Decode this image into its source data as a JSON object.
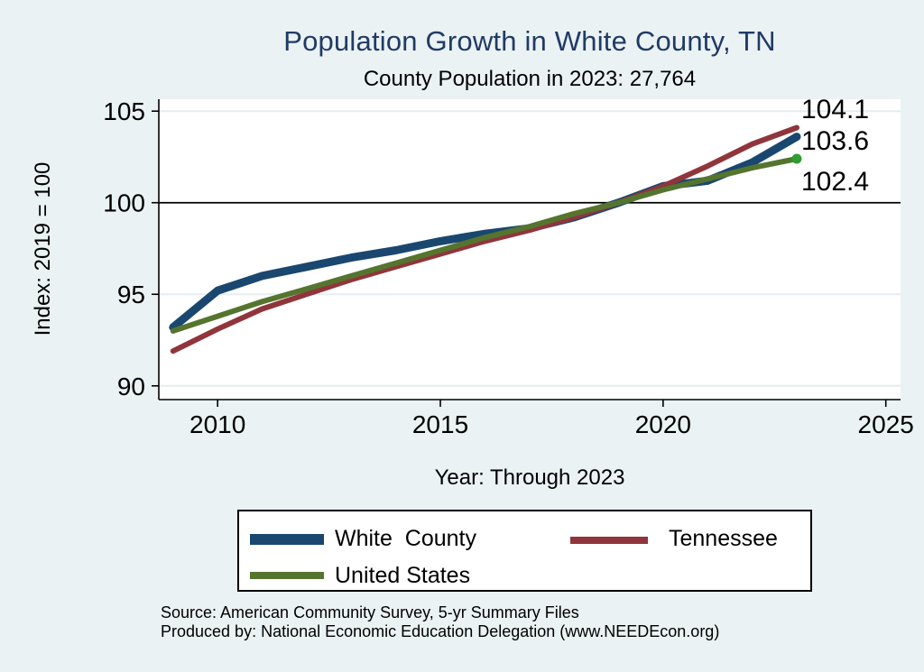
{
  "header": {
    "title": "Population Growth in White County, TN",
    "subtitle": "County Population in 2023: 27,764"
  },
  "colors": {
    "background": "#eaf2f3",
    "plot_bg": "#ffffff",
    "title": "#213a66",
    "grid": "#e4edf0",
    "axis": "#000000",
    "ref_line": "#000000",
    "navy": "#1a476f",
    "maroon": "#90353b",
    "olive": "#55752f",
    "end_dot_green": "#2e9e2e"
  },
  "chart_data": {
    "type": "line",
    "title": "Population Growth in White County, TN",
    "subtitle": "County Population in 2023: 27,764",
    "xlabel": "Year: Through 2023",
    "ylabel": "Index: 2019 = 100",
    "x": [
      2009,
      2010,
      2011,
      2012,
      2013,
      2014,
      2015,
      2016,
      2017,
      2018,
      2019,
      2020,
      2021,
      2022,
      2023
    ],
    "series": [
      {
        "name": "White  County",
        "color": "#1a476f",
        "stroke_width": 9,
        "values": [
          93.2,
          95.2,
          96.0,
          96.5,
          97.0,
          97.4,
          97.9,
          98.3,
          98.6,
          99.2,
          100.0,
          100.9,
          101.2,
          102.2,
          103.6
        ]
      },
      {
        "name": "Tennessee",
        "color": "#90353b",
        "stroke_width": 6,
        "values": [
          91.9,
          93.1,
          94.2,
          95.0,
          95.8,
          96.5,
          97.2,
          97.9,
          98.5,
          99.2,
          100.0,
          100.9,
          102.0,
          103.2,
          104.1
        ]
      },
      {
        "name": "United States",
        "color": "#55752f",
        "stroke_width": 6,
        "end_marker_color": "#2e9e2e",
        "values": [
          93.0,
          93.8,
          94.6,
          95.3,
          96.0,
          96.7,
          97.4,
          98.1,
          98.7,
          99.4,
          100.0,
          100.7,
          101.3,
          101.9,
          102.4
        ]
      }
    ],
    "x_ticks": [
      2010,
      2015,
      2020,
      2025
    ],
    "y_ticks": [
      90,
      95,
      100,
      105
    ],
    "xlim": [
      2008.68,
      2025.33
    ],
    "ylim": [
      89.25,
      105.65
    ],
    "ref_line_y": 100,
    "grid": true,
    "legend_position": "bottom",
    "end_labels": [
      "104.1",
      "103.6",
      "102.4"
    ]
  },
  "legend": {
    "items": [
      {
        "label": "White  County",
        "color": "#1a476f"
      },
      {
        "label": "Tennessee",
        "color": "#90353b"
      },
      {
        "label": "United States",
        "color": "#55752f"
      }
    ]
  },
  "footer": {
    "source": "Source: American Community Survey, 5-yr Summary Files",
    "produced_by": "Produced by: National Economic Education Delegation (www.NEEDEcon.org)"
  }
}
